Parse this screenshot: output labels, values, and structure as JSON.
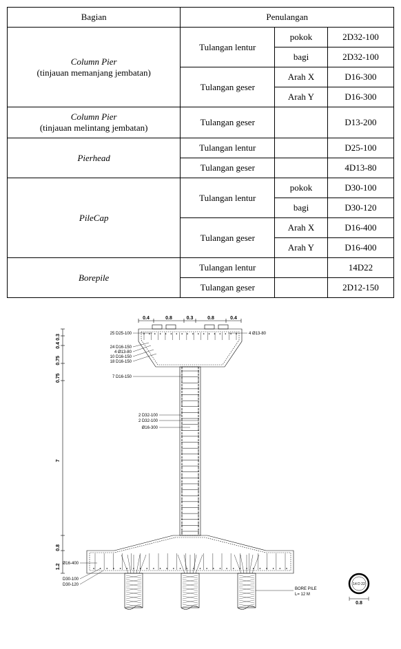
{
  "table": {
    "header": {
      "bagian": "Bagian",
      "penulangan": "Penulangan"
    },
    "rows": [
      {
        "bagian_it": "Column Pier",
        "bagian_sub": "(tinjauan memanjang jembatan)",
        "t1": "Tulangan lentur",
        "s1": "pokok",
        "v1": "2D32-100",
        "s2": "bagi",
        "v2": "2D32-100",
        "t2": "Tulangan geser",
        "s3": "Arah X",
        "v3": "D16-300",
        "s4": "Arah Y",
        "v4": "D16-300"
      },
      {
        "bagian_it": "Column Pier",
        "bagian_sub": "(tinjauan melintang jembatan)",
        "t": "Tulangan geser",
        "s": "",
        "v": "D13-200"
      },
      {
        "bagian_it": "Pierhead",
        "t1": "Tulangan lentur",
        "s1": "",
        "v1": "D25-100",
        "t2": "Tulangan geser",
        "s2": "",
        "v2": "4D13-80"
      },
      {
        "bagian_it": "PileCap",
        "t1": "Tulangan lentur",
        "s1": "pokok",
        "v1": "D30-100",
        "s2": "bagi",
        "v2": "D30-120",
        "t2": "Tulangan geser",
        "s3": "Arah X",
        "v3": "D16-400",
        "s4": "Arah Y",
        "v4": "D16-400"
      },
      {
        "bagian_it": "Borepile",
        "t1": "Tulangan lentur",
        "s1": "",
        "v1": "14D22",
        "t2": "Tulangan geser",
        "s2": "",
        "v2": "2D12-150"
      }
    ]
  },
  "diagram": {
    "top_dims": [
      "0.4",
      "0.8",
      "0.3",
      "0.8",
      "0.4"
    ],
    "left_dims": [
      "0.3",
      "0.4",
      "0.75",
      "0.75",
      "7",
      "0.8",
      "1.2"
    ],
    "callouts_left_top": [
      "25 D25-100",
      "24 D16-150",
      "4 Ø13-80",
      "10 D16-150",
      "18 D16-150",
      "7 D16-150"
    ],
    "callouts_mid": [
      "2 D32-100",
      "2 D32-100",
      "Ø16-300"
    ],
    "callout_right_top": "4 Ø13-80",
    "callouts_bottom_left": [
      "Ø16-400",
      "D30-100",
      "D30-120"
    ],
    "borepile_label": "BORE PILE",
    "borepile_len": "L= 12 M",
    "circle_label": "14 D 22",
    "circle_dim": "0.8",
    "colors": {
      "stroke": "#000000",
      "bg": "#ffffff",
      "hatch": "#000000"
    },
    "stroke_w": 0.6,
    "font_small": 6,
    "font_dim": 7
  }
}
